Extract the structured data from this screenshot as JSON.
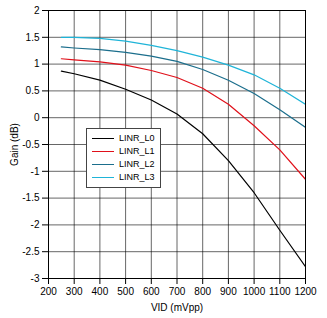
{
  "chart_data": {
    "type": "line",
    "x_label": "VID (mVpp)",
    "y_label": "Gain (dB)",
    "x": [
      250,
      300,
      400,
      500,
      600,
      700,
      800,
      900,
      1000,
      1100,
      1200
    ],
    "series": [
      {
        "name": "LINR_L0",
        "color": "#000000",
        "values": [
          0.87,
          0.82,
          0.7,
          0.53,
          0.33,
          0.07,
          -0.3,
          -0.8,
          -1.4,
          -2.1,
          -2.78
        ]
      },
      {
        "name": "LINR_L1",
        "color": "#e0101a",
        "values": [
          1.1,
          1.08,
          1.04,
          0.98,
          0.88,
          0.75,
          0.55,
          0.25,
          -0.15,
          -0.6,
          -1.15
        ]
      },
      {
        "name": "LINR_L2",
        "color": "#1b6e8c",
        "values": [
          1.32,
          1.3,
          1.27,
          1.22,
          1.15,
          1.05,
          0.9,
          0.7,
          0.45,
          0.15,
          -0.18
        ]
      },
      {
        "name": "LINR_L3",
        "color": "#1fb4d8",
        "values": [
          1.5,
          1.5,
          1.48,
          1.43,
          1.35,
          1.25,
          1.13,
          0.98,
          0.8,
          0.55,
          0.25
        ]
      }
    ],
    "xlim": [
      200,
      1200
    ],
    "xticks": [
      200,
      300,
      400,
      500,
      600,
      700,
      800,
      900,
      1000,
      1100,
      1200
    ],
    "ylim": [
      -3,
      2
    ],
    "yticks": [
      -3,
      -2.5,
      -2,
      -1.5,
      -1,
      -0.5,
      0,
      0.5,
      1,
      1.5,
      2
    ],
    "grid": true,
    "legend": "left"
  }
}
